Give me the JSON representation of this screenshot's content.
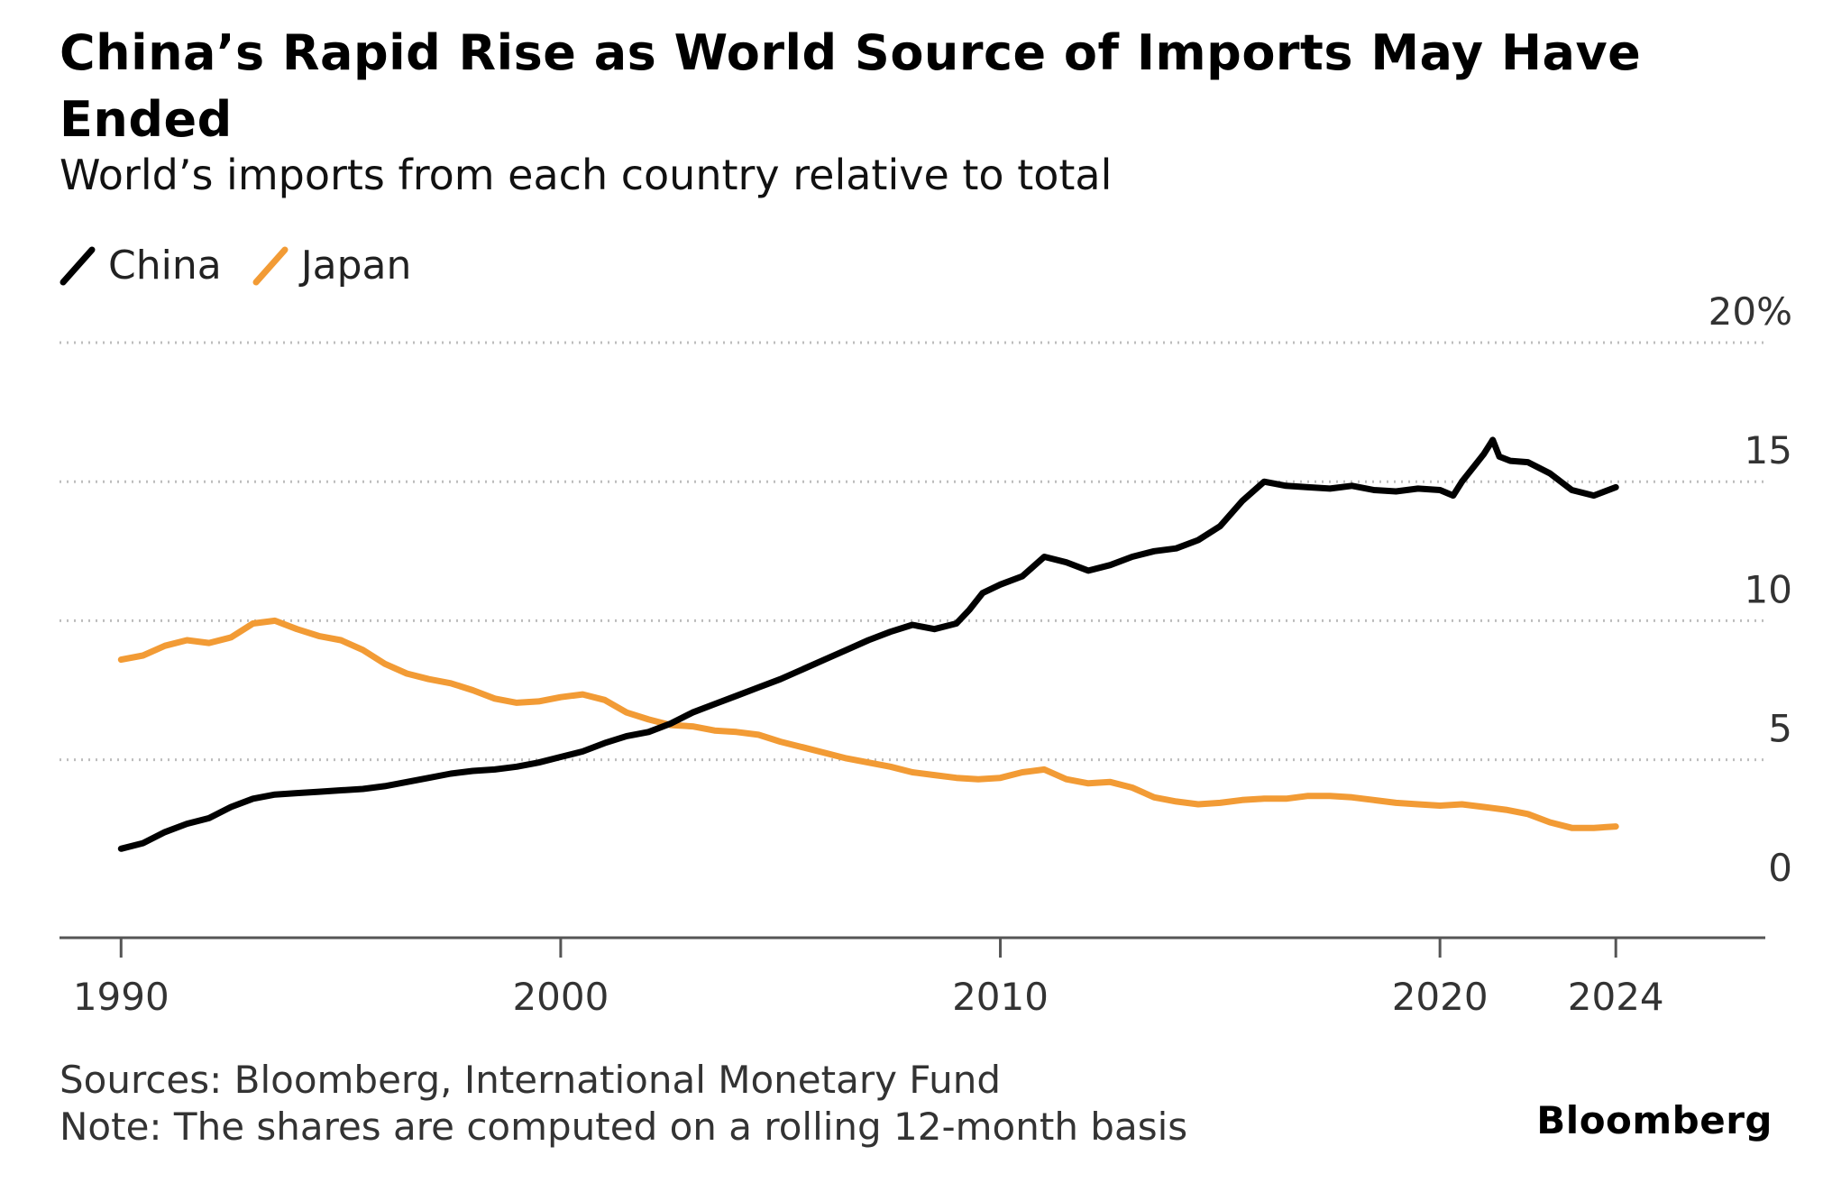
{
  "header": {
    "title": "China’s Rapid Rise as World Source of Imports May Have Ended",
    "subtitle": "World’s imports from each country relative to total"
  },
  "legend": [
    {
      "label": "China",
      "color": "#000000"
    },
    {
      "label": "Japan",
      "color": "#f29b35"
    }
  ],
  "footer": {
    "sources": "Sources: Bloomberg, International Monetary Fund",
    "note": "Note: The shares are computed on a rolling 12-month basis",
    "brand": "Bloomberg"
  },
  "chart_data": {
    "type": "line",
    "title": "China’s Rapid Rise as World Source of Imports May Have Ended",
    "subtitle": "World’s imports from each country relative to total",
    "xlabel": "",
    "ylabel": "",
    "xlim": [
      1988.6,
      2027.4
    ],
    "ylim": [
      -1.4,
      20
    ],
    "x_ticks": [
      1990,
      2000,
      2010,
      2020,
      2024
    ],
    "x_tick_labels": [
      "1990",
      "2000",
      "2010",
      "2020",
      "2024"
    ],
    "y_ticks": [
      0,
      5,
      10,
      15,
      20
    ],
    "y_tick_labels": [
      "0",
      "5",
      "10",
      "15",
      "20%"
    ],
    "grid": true,
    "legend_position": "top-left",
    "series": [
      {
        "name": "China",
        "color": "#000000",
        "points": [
          [
            1990.0,
            1.8
          ],
          [
            1990.5,
            2.0
          ],
          [
            1991.0,
            2.4
          ],
          [
            1991.5,
            2.7
          ],
          [
            1992.0,
            2.9
          ],
          [
            1992.5,
            3.3
          ],
          [
            1993.0,
            3.6
          ],
          [
            1993.5,
            3.75
          ],
          [
            1994.0,
            3.8
          ],
          [
            1994.5,
            3.85
          ],
          [
            1995.0,
            3.9
          ],
          [
            1995.5,
            3.95
          ],
          [
            1996.0,
            4.05
          ],
          [
            1996.5,
            4.2
          ],
          [
            1997.0,
            4.35
          ],
          [
            1997.5,
            4.5
          ],
          [
            1998.0,
            4.6
          ],
          [
            1998.5,
            4.65
          ],
          [
            1999.0,
            4.75
          ],
          [
            1999.5,
            4.9
          ],
          [
            2000.0,
            5.1
          ],
          [
            2000.5,
            5.3
          ],
          [
            2001.0,
            5.6
          ],
          [
            2001.5,
            5.85
          ],
          [
            2002.0,
            6.0
          ],
          [
            2002.5,
            6.3
          ],
          [
            2003.0,
            6.7
          ],
          [
            2003.5,
            7.0
          ],
          [
            2004.0,
            7.3
          ],
          [
            2004.5,
            7.6
          ],
          [
            2005.0,
            7.9
          ],
          [
            2005.5,
            8.25
          ],
          [
            2006.0,
            8.6
          ],
          [
            2006.5,
            8.95
          ],
          [
            2007.0,
            9.3
          ],
          [
            2007.5,
            9.6
          ],
          [
            2008.0,
            9.85
          ],
          [
            2008.5,
            9.7
          ],
          [
            2009.0,
            9.9
          ],
          [
            2009.3,
            10.4
          ],
          [
            2009.6,
            11.0
          ],
          [
            2010.0,
            11.3
          ],
          [
            2010.5,
            11.6
          ],
          [
            2011.0,
            12.3
          ],
          [
            2011.5,
            12.1
          ],
          [
            2012.0,
            11.8
          ],
          [
            2012.5,
            12.0
          ],
          [
            2013.0,
            12.3
          ],
          [
            2013.5,
            12.5
          ],
          [
            2014.0,
            12.6
          ],
          [
            2014.5,
            12.9
          ],
          [
            2015.0,
            13.4
          ],
          [
            2015.5,
            14.3
          ],
          [
            2016.0,
            15.0
          ],
          [
            2016.5,
            14.85
          ],
          [
            2017.0,
            14.8
          ],
          [
            2017.5,
            14.75
          ],
          [
            2018.0,
            14.85
          ],
          [
            2018.5,
            14.7
          ],
          [
            2019.0,
            14.65
          ],
          [
            2019.5,
            14.75
          ],
          [
            2020.0,
            14.7
          ],
          [
            2020.3,
            14.5
          ],
          [
            2020.5,
            15.0
          ],
          [
            2020.8,
            15.6
          ],
          [
            2021.0,
            16.0
          ],
          [
            2021.2,
            16.5
          ],
          [
            2021.35,
            15.9
          ],
          [
            2021.6,
            15.75
          ],
          [
            2022.0,
            15.7
          ],
          [
            2022.5,
            15.3
          ],
          [
            2023.0,
            14.7
          ],
          [
            2023.5,
            14.5
          ],
          [
            2024.0,
            14.8
          ]
        ]
      },
      {
        "name": "Japan",
        "color": "#f29b35",
        "points": [
          [
            1990.0,
            8.6
          ],
          [
            1990.5,
            8.75
          ],
          [
            1991.0,
            9.1
          ],
          [
            1991.5,
            9.3
          ],
          [
            1992.0,
            9.2
          ],
          [
            1992.5,
            9.4
          ],
          [
            1993.0,
            9.9
          ],
          [
            1993.5,
            10.0
          ],
          [
            1994.0,
            9.7
          ],
          [
            1994.5,
            9.45
          ],
          [
            1995.0,
            9.3
          ],
          [
            1995.5,
            8.95
          ],
          [
            1996.0,
            8.45
          ],
          [
            1996.5,
            8.1
          ],
          [
            1997.0,
            7.9
          ],
          [
            1997.5,
            7.75
          ],
          [
            1998.0,
            7.5
          ],
          [
            1998.5,
            7.2
          ],
          [
            1999.0,
            7.05
          ],
          [
            1999.5,
            7.1
          ],
          [
            2000.0,
            7.25
          ],
          [
            2000.5,
            7.35
          ],
          [
            2001.0,
            7.15
          ],
          [
            2001.5,
            6.7
          ],
          [
            2002.0,
            6.45
          ],
          [
            2002.5,
            6.25
          ],
          [
            2003.0,
            6.2
          ],
          [
            2003.5,
            6.05
          ],
          [
            2004.0,
            6.0
          ],
          [
            2004.5,
            5.9
          ],
          [
            2005.0,
            5.65
          ],
          [
            2005.5,
            5.45
          ],
          [
            2006.0,
            5.25
          ],
          [
            2006.5,
            5.05
          ],
          [
            2007.0,
            4.9
          ],
          [
            2007.5,
            4.75
          ],
          [
            2008.0,
            4.55
          ],
          [
            2008.5,
            4.45
          ],
          [
            2009.0,
            4.35
          ],
          [
            2009.5,
            4.3
          ],
          [
            2010.0,
            4.35
          ],
          [
            2010.5,
            4.55
          ],
          [
            2011.0,
            4.65
          ],
          [
            2011.5,
            4.3
          ],
          [
            2012.0,
            4.15
          ],
          [
            2012.5,
            4.2
          ],
          [
            2013.0,
            4.0
          ],
          [
            2013.5,
            3.65
          ],
          [
            2014.0,
            3.5
          ],
          [
            2014.5,
            3.4
          ],
          [
            2015.0,
            3.45
          ],
          [
            2015.5,
            3.55
          ],
          [
            2016.0,
            3.6
          ],
          [
            2016.5,
            3.6
          ],
          [
            2017.0,
            3.7
          ],
          [
            2017.5,
            3.7
          ],
          [
            2018.0,
            3.65
          ],
          [
            2018.5,
            3.55
          ],
          [
            2019.0,
            3.45
          ],
          [
            2019.5,
            3.4
          ],
          [
            2020.0,
            3.35
          ],
          [
            2020.5,
            3.4
          ],
          [
            2021.0,
            3.3
          ],
          [
            2021.5,
            3.2
          ],
          [
            2022.0,
            3.05
          ],
          [
            2022.5,
            2.75
          ],
          [
            2023.0,
            2.55
          ],
          [
            2023.5,
            2.55
          ],
          [
            2024.0,
            2.6
          ]
        ]
      }
    ]
  }
}
